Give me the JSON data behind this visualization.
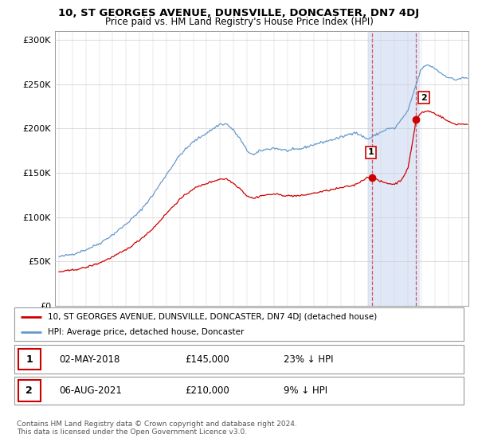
{
  "title1": "10, ST GEORGES AVENUE, DUNSVILLE, DONCASTER, DN7 4DJ",
  "title2": "Price paid vs. HM Land Registry's House Price Index (HPI)",
  "ylabel_ticks": [
    "£0",
    "£50K",
    "£100K",
    "£150K",
    "£200K",
    "£250K",
    "£300K"
  ],
  "ytick_vals": [
    0,
    50000,
    100000,
    150000,
    200000,
    250000,
    300000
  ],
  "ylim": [
    0,
    310000
  ],
  "xlim_start": 1994.7,
  "xlim_end": 2025.5,
  "legend_line1": "10, ST GEORGES AVENUE, DUNSVILLE, DONCASTER, DN7 4DJ (detached house)",
  "legend_line2": "HPI: Average price, detached house, Doncaster",
  "line1_color": "#cc0000",
  "line2_color": "#6699cc",
  "marker1_date": 2018.33,
  "marker1_val": 145000,
  "marker2_date": 2021.58,
  "marker2_val": 210000,
  "bg_shade_start": 2018.0,
  "bg_shade_end": 2021.83,
  "bg_shade_color": "#e0e8f8",
  "table_rows": [
    {
      "label": "1",
      "date": "02-MAY-2018",
      "price": "£145,000",
      "hpi": "23% ↓ HPI"
    },
    {
      "label": "2",
      "date": "06-AUG-2021",
      "price": "£210,000",
      "hpi": "9% ↓ HPI"
    }
  ],
  "footer": "Contains HM Land Registry data © Crown copyright and database right 2024.\nThis data is licensed under the Open Government Licence v3.0."
}
